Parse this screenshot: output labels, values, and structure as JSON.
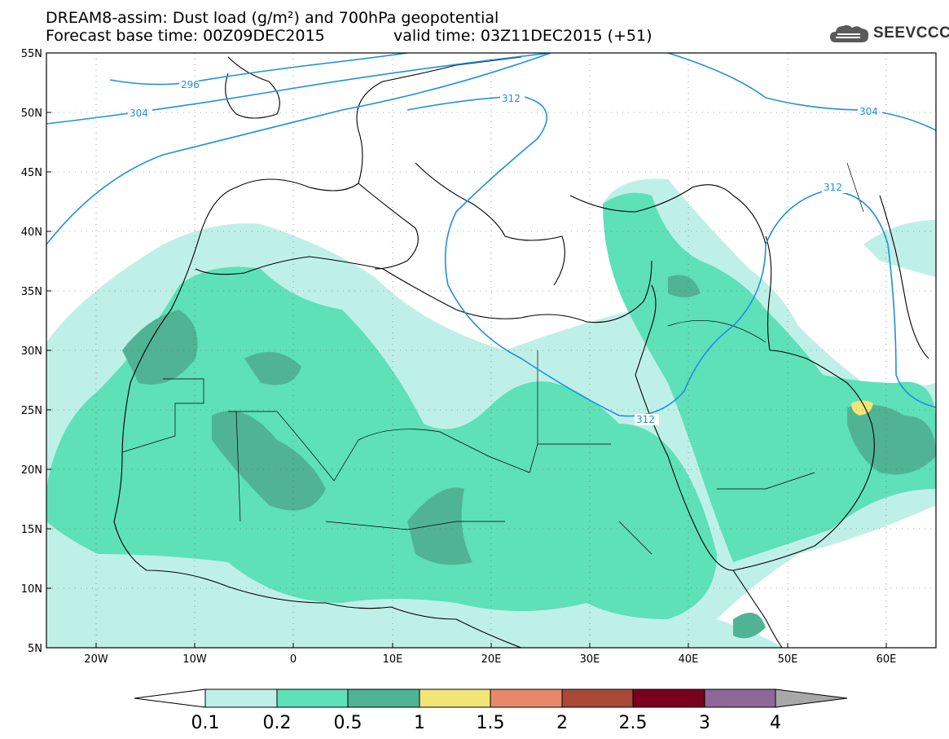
{
  "header": {
    "title": "DREAM8-assim: Dust load (g/m²) and 700hPa geopotential",
    "base_time": "Forecast base time: 00Z09DEC2015",
    "valid_time": "valid time: 03Z11DEC2015 (+51)"
  },
  "logo": {
    "text": "SEEVCCC",
    "icon": "cloud-icon"
  },
  "map": {
    "lon_range": [
      -25,
      65
    ],
    "lat_range": [
      5,
      55
    ],
    "lon_ticks": [
      "20W",
      "10W",
      "0",
      "10E",
      "20E",
      "30E",
      "40E",
      "50E",
      "60E"
    ],
    "lat_ticks": [
      "55N",
      "50N",
      "45N",
      "40N",
      "35N",
      "30N",
      "25N",
      "20N",
      "15N",
      "10N",
      "5N"
    ],
    "contour_labels": [
      "296",
      "304",
      "312",
      "304",
      "312",
      "312"
    ],
    "colors": {
      "isoline": "#1e90e0",
      "coast": "#000000",
      "dust_0_1": "#bff0e8",
      "dust_0_2": "#5ee0b8",
      "dust_0_5": "#50b494",
      "dust_1": "#f0e678"
    }
  },
  "colorbar": {
    "labels": [
      "0.1",
      "0.2",
      "0.5",
      "1",
      "1.5",
      "2",
      "2.5",
      "3",
      "4"
    ],
    "colors": [
      "#bff0e8",
      "#5ee0b8",
      "#50b494",
      "#f0e678",
      "#e8886a",
      "#a84838",
      "#7a0020",
      "#8c6898"
    ]
  }
}
